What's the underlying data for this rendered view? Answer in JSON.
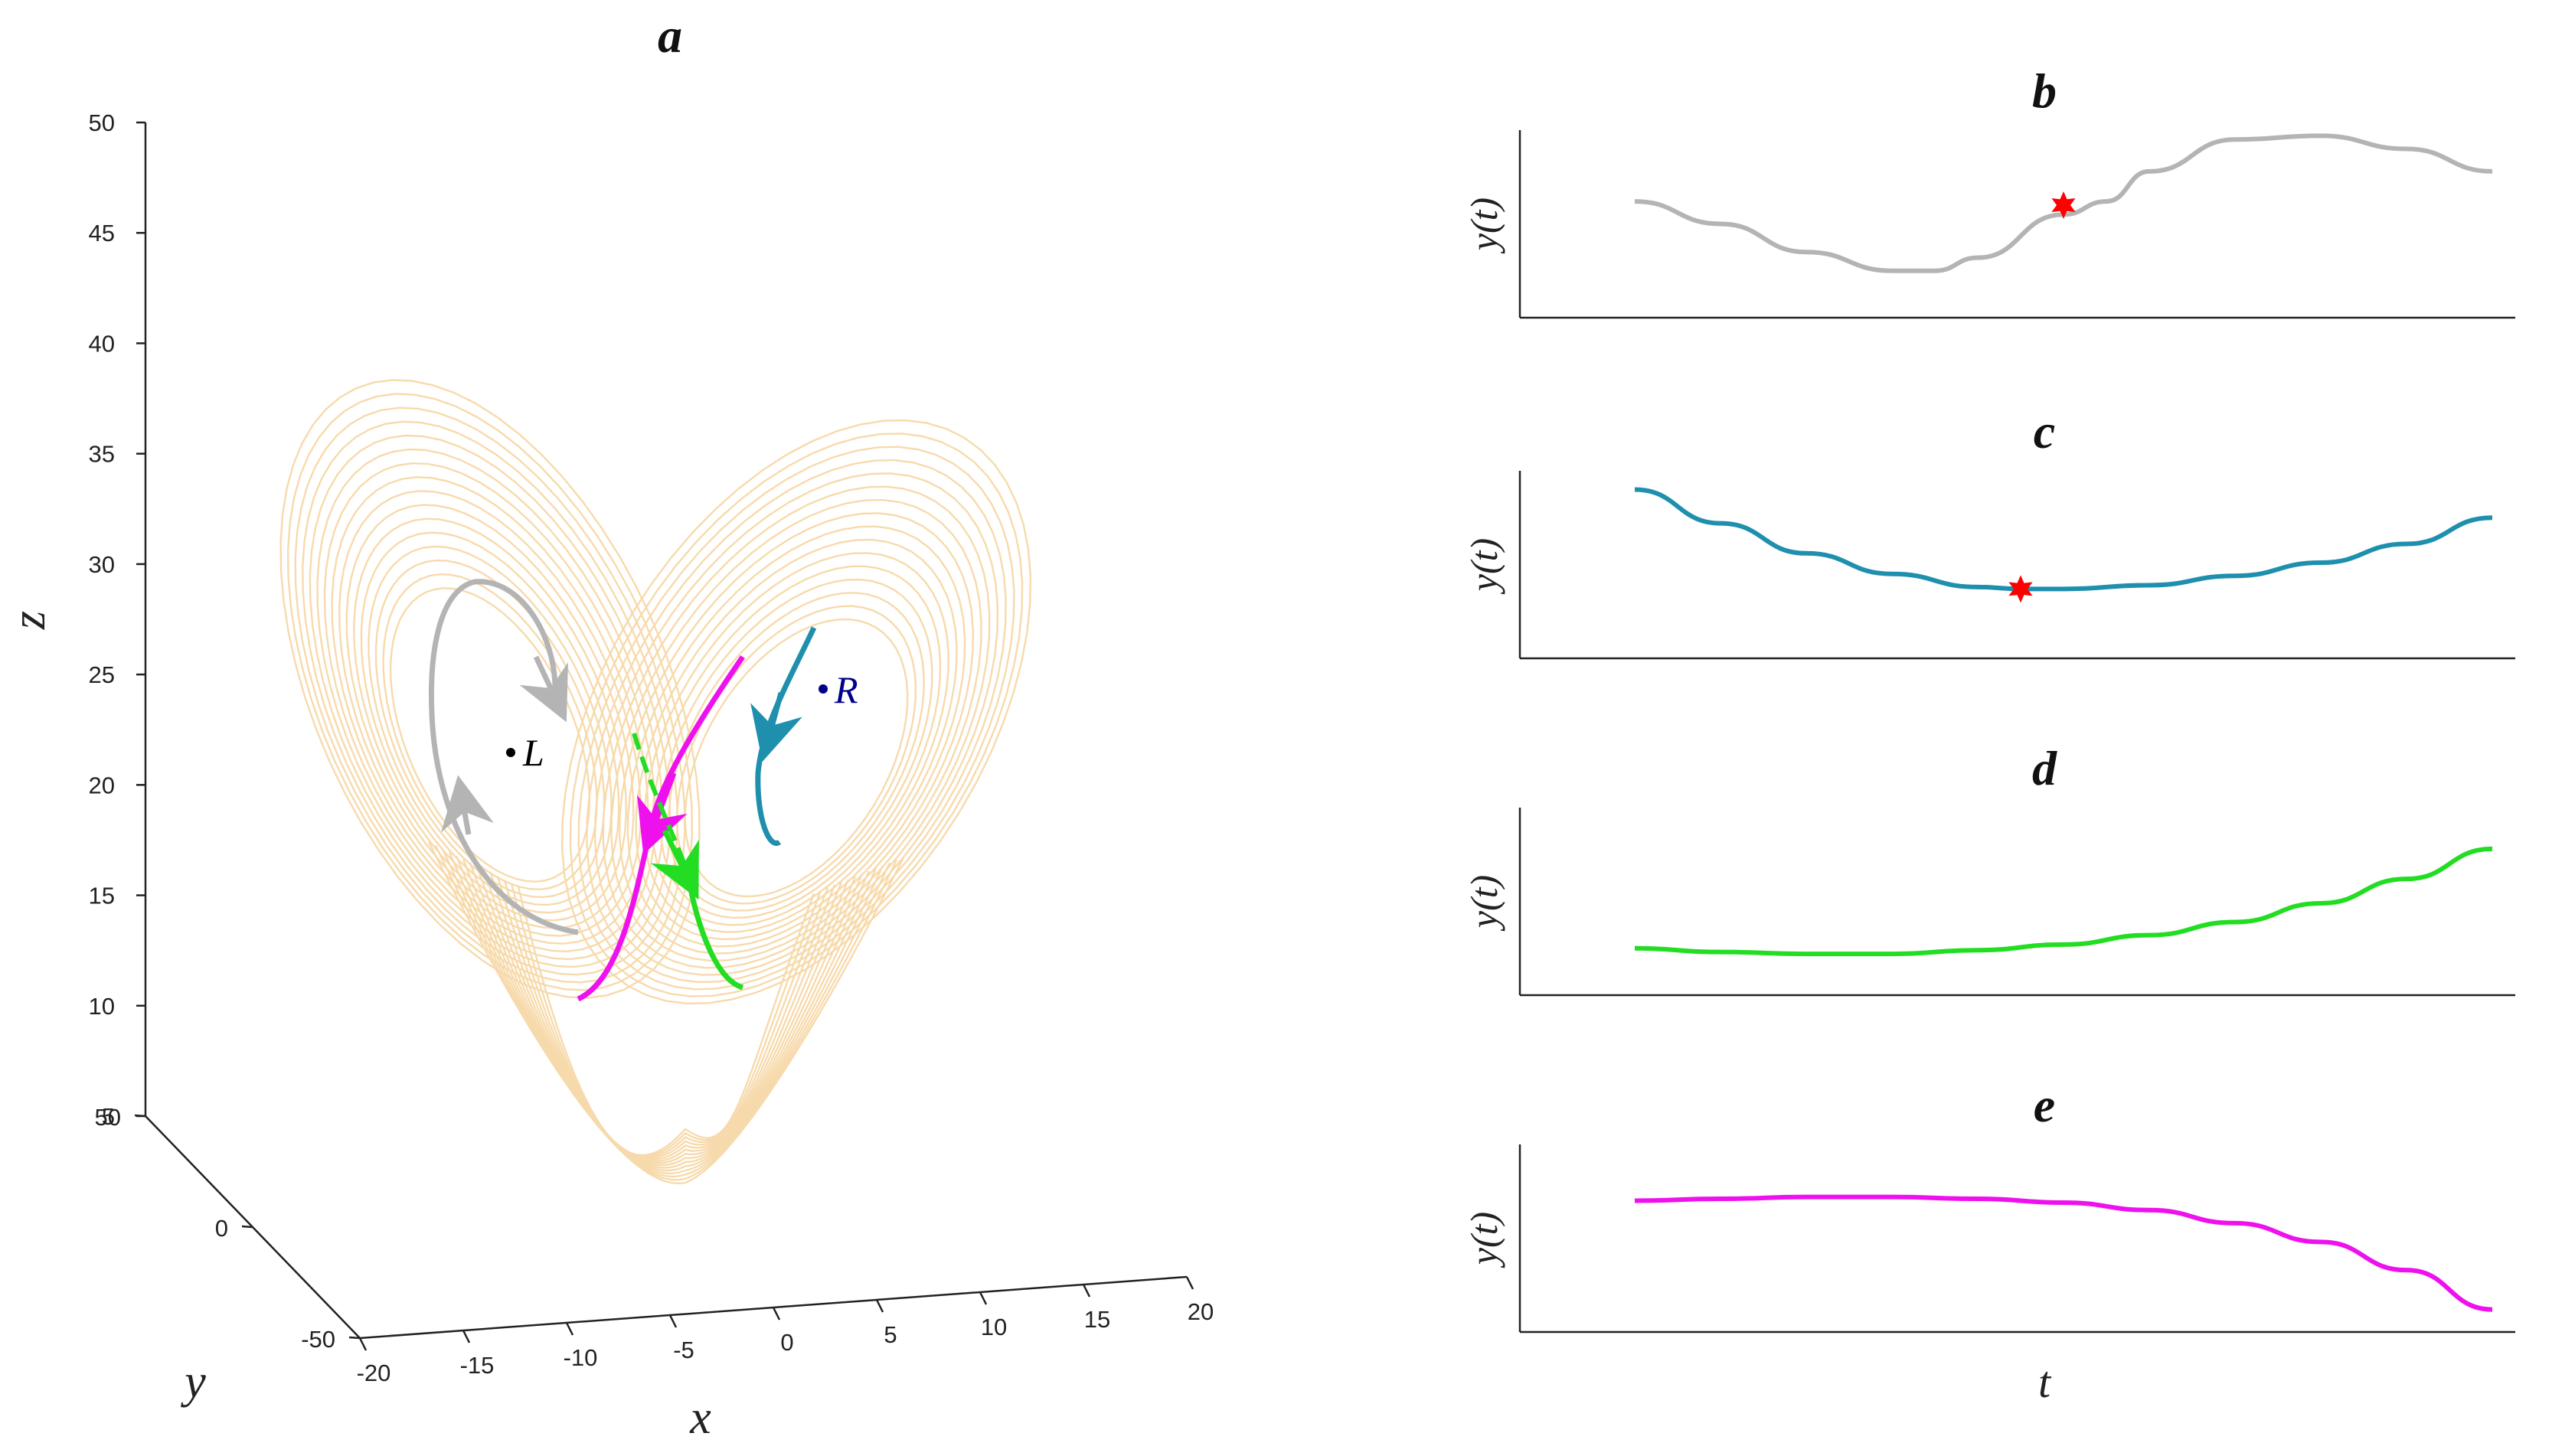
{
  "chart_data": [
    {
      "id": "a",
      "type": "line",
      "title": "a",
      "description_kind": "3d-trajectory",
      "xlabel": "x",
      "ylabel": "y",
      "zlabel": "z",
      "xlim": [
        -20,
        20
      ],
      "ylim": [
        -50,
        50
      ],
      "zlim": [
        5,
        50
      ],
      "x_ticks": [
        "-20",
        "-15",
        "-10",
        "-5",
        "0",
        "5",
        "10",
        "15",
        "20"
      ],
      "y_ticks": [
        "-50",
        "0",
        "50"
      ],
      "z_ticks": [
        "5",
        "10",
        "15",
        "20",
        "25",
        "30",
        "35",
        "40",
        "45",
        "50"
      ],
      "points": [
        {
          "name": "L",
          "label": "L",
          "color": "#000000",
          "x": -8.5,
          "y": -8.5,
          "z": 27
        },
        {
          "name": "R",
          "label": "R",
          "color": "#00008b",
          "x": 8.5,
          "y": 8.5,
          "z": 27
        }
      ],
      "series": [
        {
          "name": "attractor",
          "color": "#f7d9a8"
        },
        {
          "name": "gray-trajectory",
          "color": "#b4b4b4"
        },
        {
          "name": "cyan-trajectory",
          "color": "#1f8fae"
        },
        {
          "name": "green-trajectory",
          "color": "#22dd22"
        },
        {
          "name": "magenta-trajectory",
          "color": "#ee11ee"
        }
      ]
    },
    {
      "id": "b",
      "type": "line",
      "title": "b",
      "ylabel": "y(t)",
      "xlabel": "",
      "color": "#b4b4b4",
      "marker_color": "#ff0000",
      "x": [
        0,
        0.1,
        0.2,
        0.3,
        0.35,
        0.4,
        0.5,
        0.55,
        0.6,
        0.7,
        0.8,
        0.9,
        1.0
      ],
      "y": [
        0.62,
        0.5,
        0.35,
        0.25,
        0.25,
        0.32,
        0.55,
        0.62,
        0.78,
        0.95,
        0.97,
        0.9,
        0.78
      ],
      "marker_x": 0.5,
      "marker_y": 0.6
    },
    {
      "id": "c",
      "type": "line",
      "title": "c",
      "ylabel": "y(t)",
      "xlabel": "",
      "color": "#1f8fae",
      "marker_color": "#ff0000",
      "x": [
        0,
        0.1,
        0.2,
        0.3,
        0.4,
        0.45,
        0.5,
        0.6,
        0.7,
        0.8,
        0.9,
        1.0
      ],
      "y": [
        0.9,
        0.72,
        0.56,
        0.45,
        0.38,
        0.37,
        0.37,
        0.39,
        0.44,
        0.51,
        0.61,
        0.75
      ],
      "marker_x": 0.45,
      "marker_y": 0.37
    },
    {
      "id": "d",
      "type": "line",
      "title": "d",
      "ylabel": "y(t)",
      "xlabel": "",
      "color": "#22dd22",
      "x": [
        0,
        0.1,
        0.2,
        0.3,
        0.4,
        0.5,
        0.6,
        0.7,
        0.8,
        0.9,
        1.0
      ],
      "y": [
        0.25,
        0.23,
        0.22,
        0.22,
        0.24,
        0.27,
        0.32,
        0.39,
        0.49,
        0.62,
        0.78
      ]
    },
    {
      "id": "e",
      "type": "line",
      "title": "e",
      "ylabel": "y(t)",
      "xlabel": "t",
      "color": "#ee11ee",
      "x": [
        0,
        0.1,
        0.2,
        0.3,
        0.4,
        0.5,
        0.6,
        0.7,
        0.8,
        0.9,
        1.0
      ],
      "y": [
        0.7,
        0.71,
        0.72,
        0.72,
        0.71,
        0.69,
        0.65,
        0.58,
        0.48,
        0.33,
        0.12
      ]
    }
  ]
}
